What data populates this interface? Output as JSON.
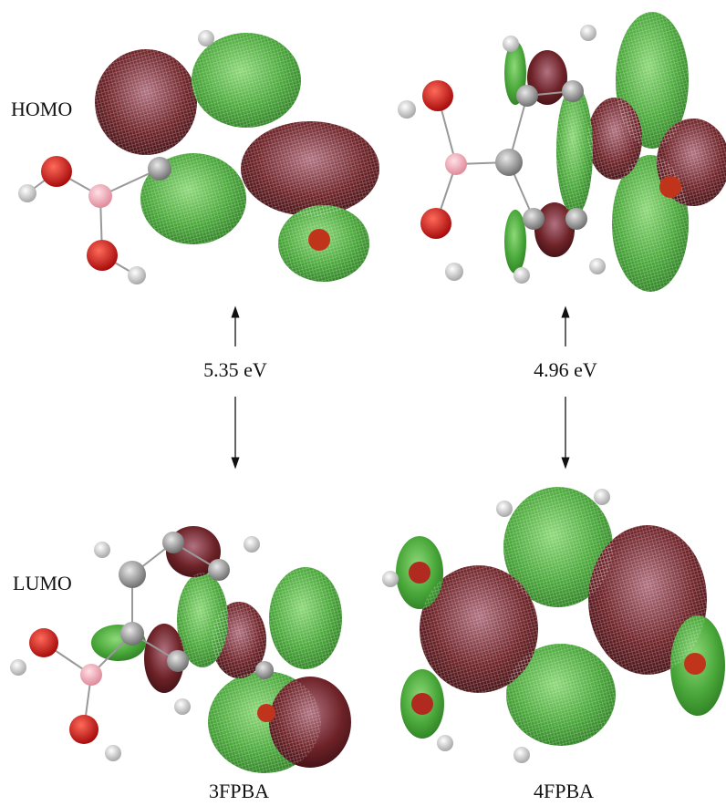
{
  "row_labels": [
    "HOMO",
    "LUMO"
  ],
  "energy_gaps": [
    "5.35 eV",
    "4.96 eV"
  ],
  "molecules": [
    "3FPBA",
    "4FPBA"
  ]
}
